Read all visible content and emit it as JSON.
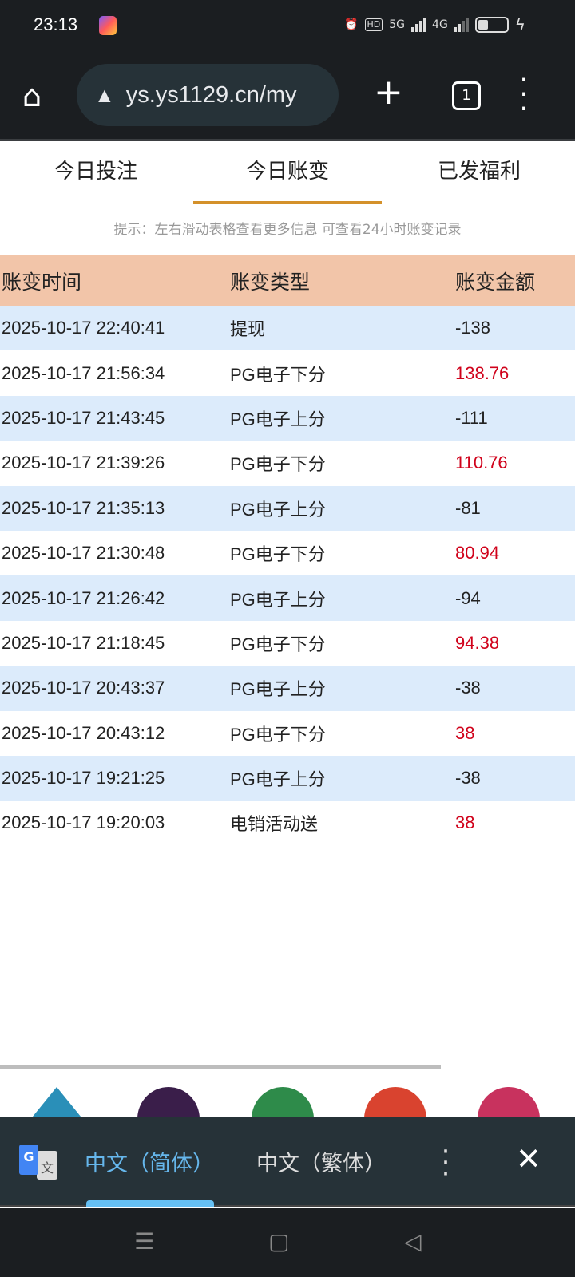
{
  "status_bar": {
    "time": "23:13",
    "icons": [
      "alarm-icon",
      "hd-icon",
      "5g-signal-icon",
      "4g-signal-icon",
      "battery-icon",
      "charging-icon"
    ],
    "network1": "5G",
    "network2": "4G"
  },
  "browser": {
    "url": "ys.ys1129.cn/my",
    "tab_count": "1"
  },
  "tabs": [
    {
      "label": "今日投注"
    },
    {
      "label": "今日账变",
      "active": true
    },
    {
      "label": "已发福利"
    }
  ],
  "hint": "提示：左右滑动表格查看更多信息  可查看24小时账变记录",
  "table": {
    "headers": [
      "账变时间",
      "账变类型",
      "账变金额"
    ],
    "rows": [
      {
        "time": "2025-10-17 22:40:41",
        "type": "提现",
        "amount": "-138"
      },
      {
        "time": "2025-10-17 21:56:34",
        "type": "PG电子下分",
        "amount": "138.76"
      },
      {
        "time": "2025-10-17 21:43:45",
        "type": "PG电子上分",
        "amount": "-111"
      },
      {
        "time": "2025-10-17 21:39:26",
        "type": "PG电子下分",
        "amount": "110.76"
      },
      {
        "time": "2025-10-17 21:35:13",
        "type": "PG电子上分",
        "amount": "-81"
      },
      {
        "time": "2025-10-17 21:30:48",
        "type": "PG电子下分",
        "amount": "80.94"
      },
      {
        "time": "2025-10-17 21:26:42",
        "type": "PG电子上分",
        "amount": "-94"
      },
      {
        "time": "2025-10-17 21:18:45",
        "type": "PG电子下分",
        "amount": "94.38"
      },
      {
        "time": "2025-10-17 20:43:37",
        "type": "PG电子上分",
        "amount": "-38"
      },
      {
        "time": "2025-10-17 20:43:12",
        "type": "PG电子下分",
        "amount": "38"
      },
      {
        "time": "2025-10-17 19:21:25",
        "type": "PG电子上分",
        "amount": "-38"
      },
      {
        "time": "2025-10-17 19:20:03",
        "type": "电销活动送",
        "amount": "38"
      }
    ]
  },
  "translate_bar": {
    "lang_selected": "中文（简体）",
    "lang_other": "中文（繁体）"
  },
  "colors": {
    "header_bg": "#f2c5a9",
    "stripe": "#dcebfb",
    "positive": "#d0021b",
    "tab_accent": "#d4912a",
    "translate_accent": "#66b7ec"
  }
}
